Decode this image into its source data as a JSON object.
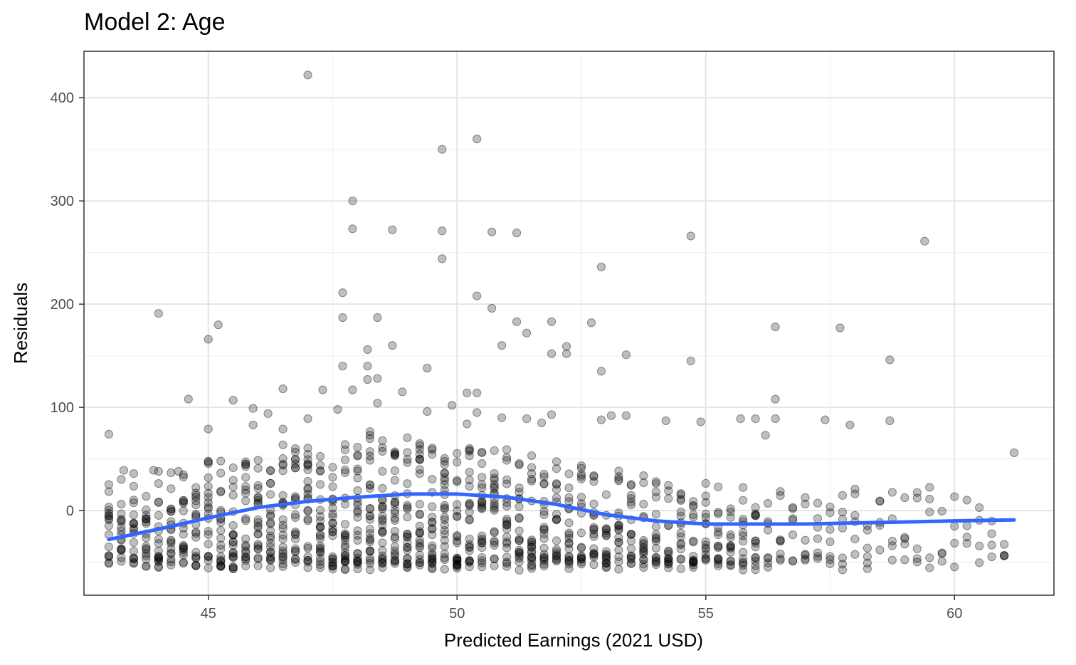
{
  "chart_data": {
    "type": "scatter",
    "title": "Model 2: Age",
    "xlabel": "Predicted Earnings (2021 USD)",
    "ylabel": "Residuals",
    "xlim": [
      42.5,
      62
    ],
    "ylim": [
      -82,
      445
    ],
    "x_ticks": [
      45,
      50,
      55,
      60
    ],
    "y_ticks": [
      0,
      100,
      200,
      300,
      400
    ],
    "x_tick_labels": [
      "45",
      "50",
      "55",
      "60"
    ],
    "y_tick_labels": [
      "0",
      "100",
      "200",
      "300",
      "400"
    ],
    "grid": true,
    "point_color": "#000000",
    "point_alpha": 0.25,
    "smooth_color": "#3366FF",
    "outliers": [
      [
        43.0,
        74
      ],
      [
        43.3,
        39
      ],
      [
        43.9,
        39
      ],
      [
        44.0,
        191
      ],
      [
        44.4,
        38
      ],
      [
        44.6,
        108
      ],
      [
        45.0,
        166
      ],
      [
        45.0,
        79
      ],
      [
        45.2,
        180
      ],
      [
        45.5,
        107
      ],
      [
        45.9,
        99
      ],
      [
        45.9,
        83
      ],
      [
        46.2,
        94
      ],
      [
        46.5,
        118
      ],
      [
        46.5,
        79
      ],
      [
        47.0,
        422
      ],
      [
        47.0,
        89
      ],
      [
        47.3,
        117
      ],
      [
        47.6,
        98
      ],
      [
        47.7,
        211
      ],
      [
        47.7,
        187
      ],
      [
        47.7,
        140
      ],
      [
        47.9,
        300
      ],
      [
        47.9,
        273
      ],
      [
        47.9,
        117
      ],
      [
        48.2,
        156
      ],
      [
        48.2,
        140
      ],
      [
        48.2,
        127
      ],
      [
        48.4,
        187
      ],
      [
        48.4,
        128
      ],
      [
        48.4,
        104
      ],
      [
        48.7,
        272
      ],
      [
        48.7,
        160
      ],
      [
        48.9,
        115
      ],
      [
        49.4,
        138
      ],
      [
        49.4,
        96
      ],
      [
        49.7,
        350
      ],
      [
        49.7,
        271
      ],
      [
        49.7,
        244
      ],
      [
        49.9,
        102
      ],
      [
        50.2,
        114
      ],
      [
        50.2,
        84
      ],
      [
        50.4,
        360
      ],
      [
        50.4,
        208
      ],
      [
        50.4,
        114
      ],
      [
        50.4,
        95
      ],
      [
        50.7,
        270
      ],
      [
        50.7,
        196
      ],
      [
        50.9,
        160
      ],
      [
        50.9,
        90
      ],
      [
        51.2,
        269
      ],
      [
        51.2,
        183
      ],
      [
        51.4,
        172
      ],
      [
        51.4,
        89
      ],
      [
        51.7,
        85
      ],
      [
        51.9,
        183
      ],
      [
        51.9,
        152
      ],
      [
        51.9,
        93
      ],
      [
        52.2,
        159
      ],
      [
        52.2,
        152
      ],
      [
        52.7,
        182
      ],
      [
        52.9,
        236
      ],
      [
        52.9,
        135
      ],
      [
        52.9,
        88
      ],
      [
        53.1,
        92
      ],
      [
        53.4,
        151
      ],
      [
        53.4,
        92
      ],
      [
        54.2,
        87
      ],
      [
        54.7,
        266
      ],
      [
        54.7,
        145
      ],
      [
        54.9,
        86
      ],
      [
        55.7,
        89
      ],
      [
        56.0,
        89
      ],
      [
        56.2,
        73
      ],
      [
        56.4,
        178
      ],
      [
        56.4,
        108
      ],
      [
        56.4,
        89
      ],
      [
        57.4,
        88
      ],
      [
        57.7,
        177
      ],
      [
        57.9,
        83
      ],
      [
        58.7,
        146
      ],
      [
        58.7,
        87
      ],
      [
        59.4,
        261
      ],
      [
        61.2,
        56
      ]
    ],
    "smooth_line": [
      [
        43.0,
        -28
      ],
      [
        44.0,
        -18
      ],
      [
        45.0,
        -7
      ],
      [
        46.0,
        3
      ],
      [
        47.0,
        9
      ],
      [
        48.0,
        13
      ],
      [
        49.0,
        16
      ],
      [
        50.0,
        16
      ],
      [
        51.0,
        13
      ],
      [
        52.0,
        6
      ],
      [
        53.0,
        -4
      ],
      [
        54.0,
        -10
      ],
      [
        55.0,
        -13
      ],
      [
        56.0,
        -13
      ],
      [
        57.0,
        -13
      ],
      [
        58.0,
        -12
      ],
      [
        59.0,
        -11
      ],
      [
        60.0,
        -10
      ],
      [
        61.2,
        -9
      ]
    ],
    "dense_band": {
      "x_start": 43.0,
      "x_end": 61.2,
      "y_floor": -58
    }
  }
}
